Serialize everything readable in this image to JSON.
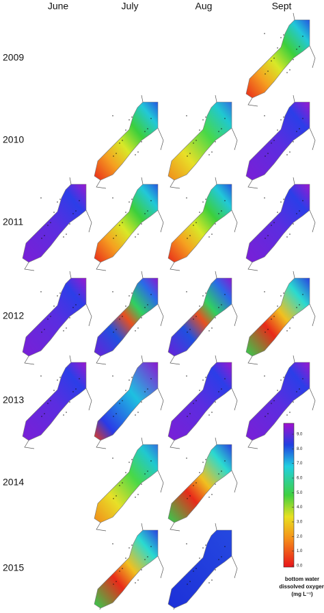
{
  "columns": [
    "June",
    "July",
    "Aug",
    "Sept"
  ],
  "rows": [
    "2009",
    "2010",
    "2011",
    "2012",
    "2013",
    "2014",
    "2015"
  ],
  "colorbar": {
    "ticks": [
      {
        "value": 0,
        "label": "0.0"
      },
      {
        "value": 1,
        "label": "1.0"
      },
      {
        "value": 2,
        "label": "2.0"
      },
      {
        "value": 3,
        "label": "3.0"
      },
      {
        "value": 4,
        "label": "4.0"
      },
      {
        "value": 5,
        "label": "5.0"
      },
      {
        "value": 6,
        "label": "6.0"
      },
      {
        "value": 7,
        "label": "7.0"
      },
      {
        "value": 8,
        "label": "8.0"
      },
      {
        "value": 9,
        "label": "9.0"
      }
    ],
    "caption": [
      "bottom water",
      "dissolved oxygen",
      "(mg L⁻¹)"
    ]
  }
}
